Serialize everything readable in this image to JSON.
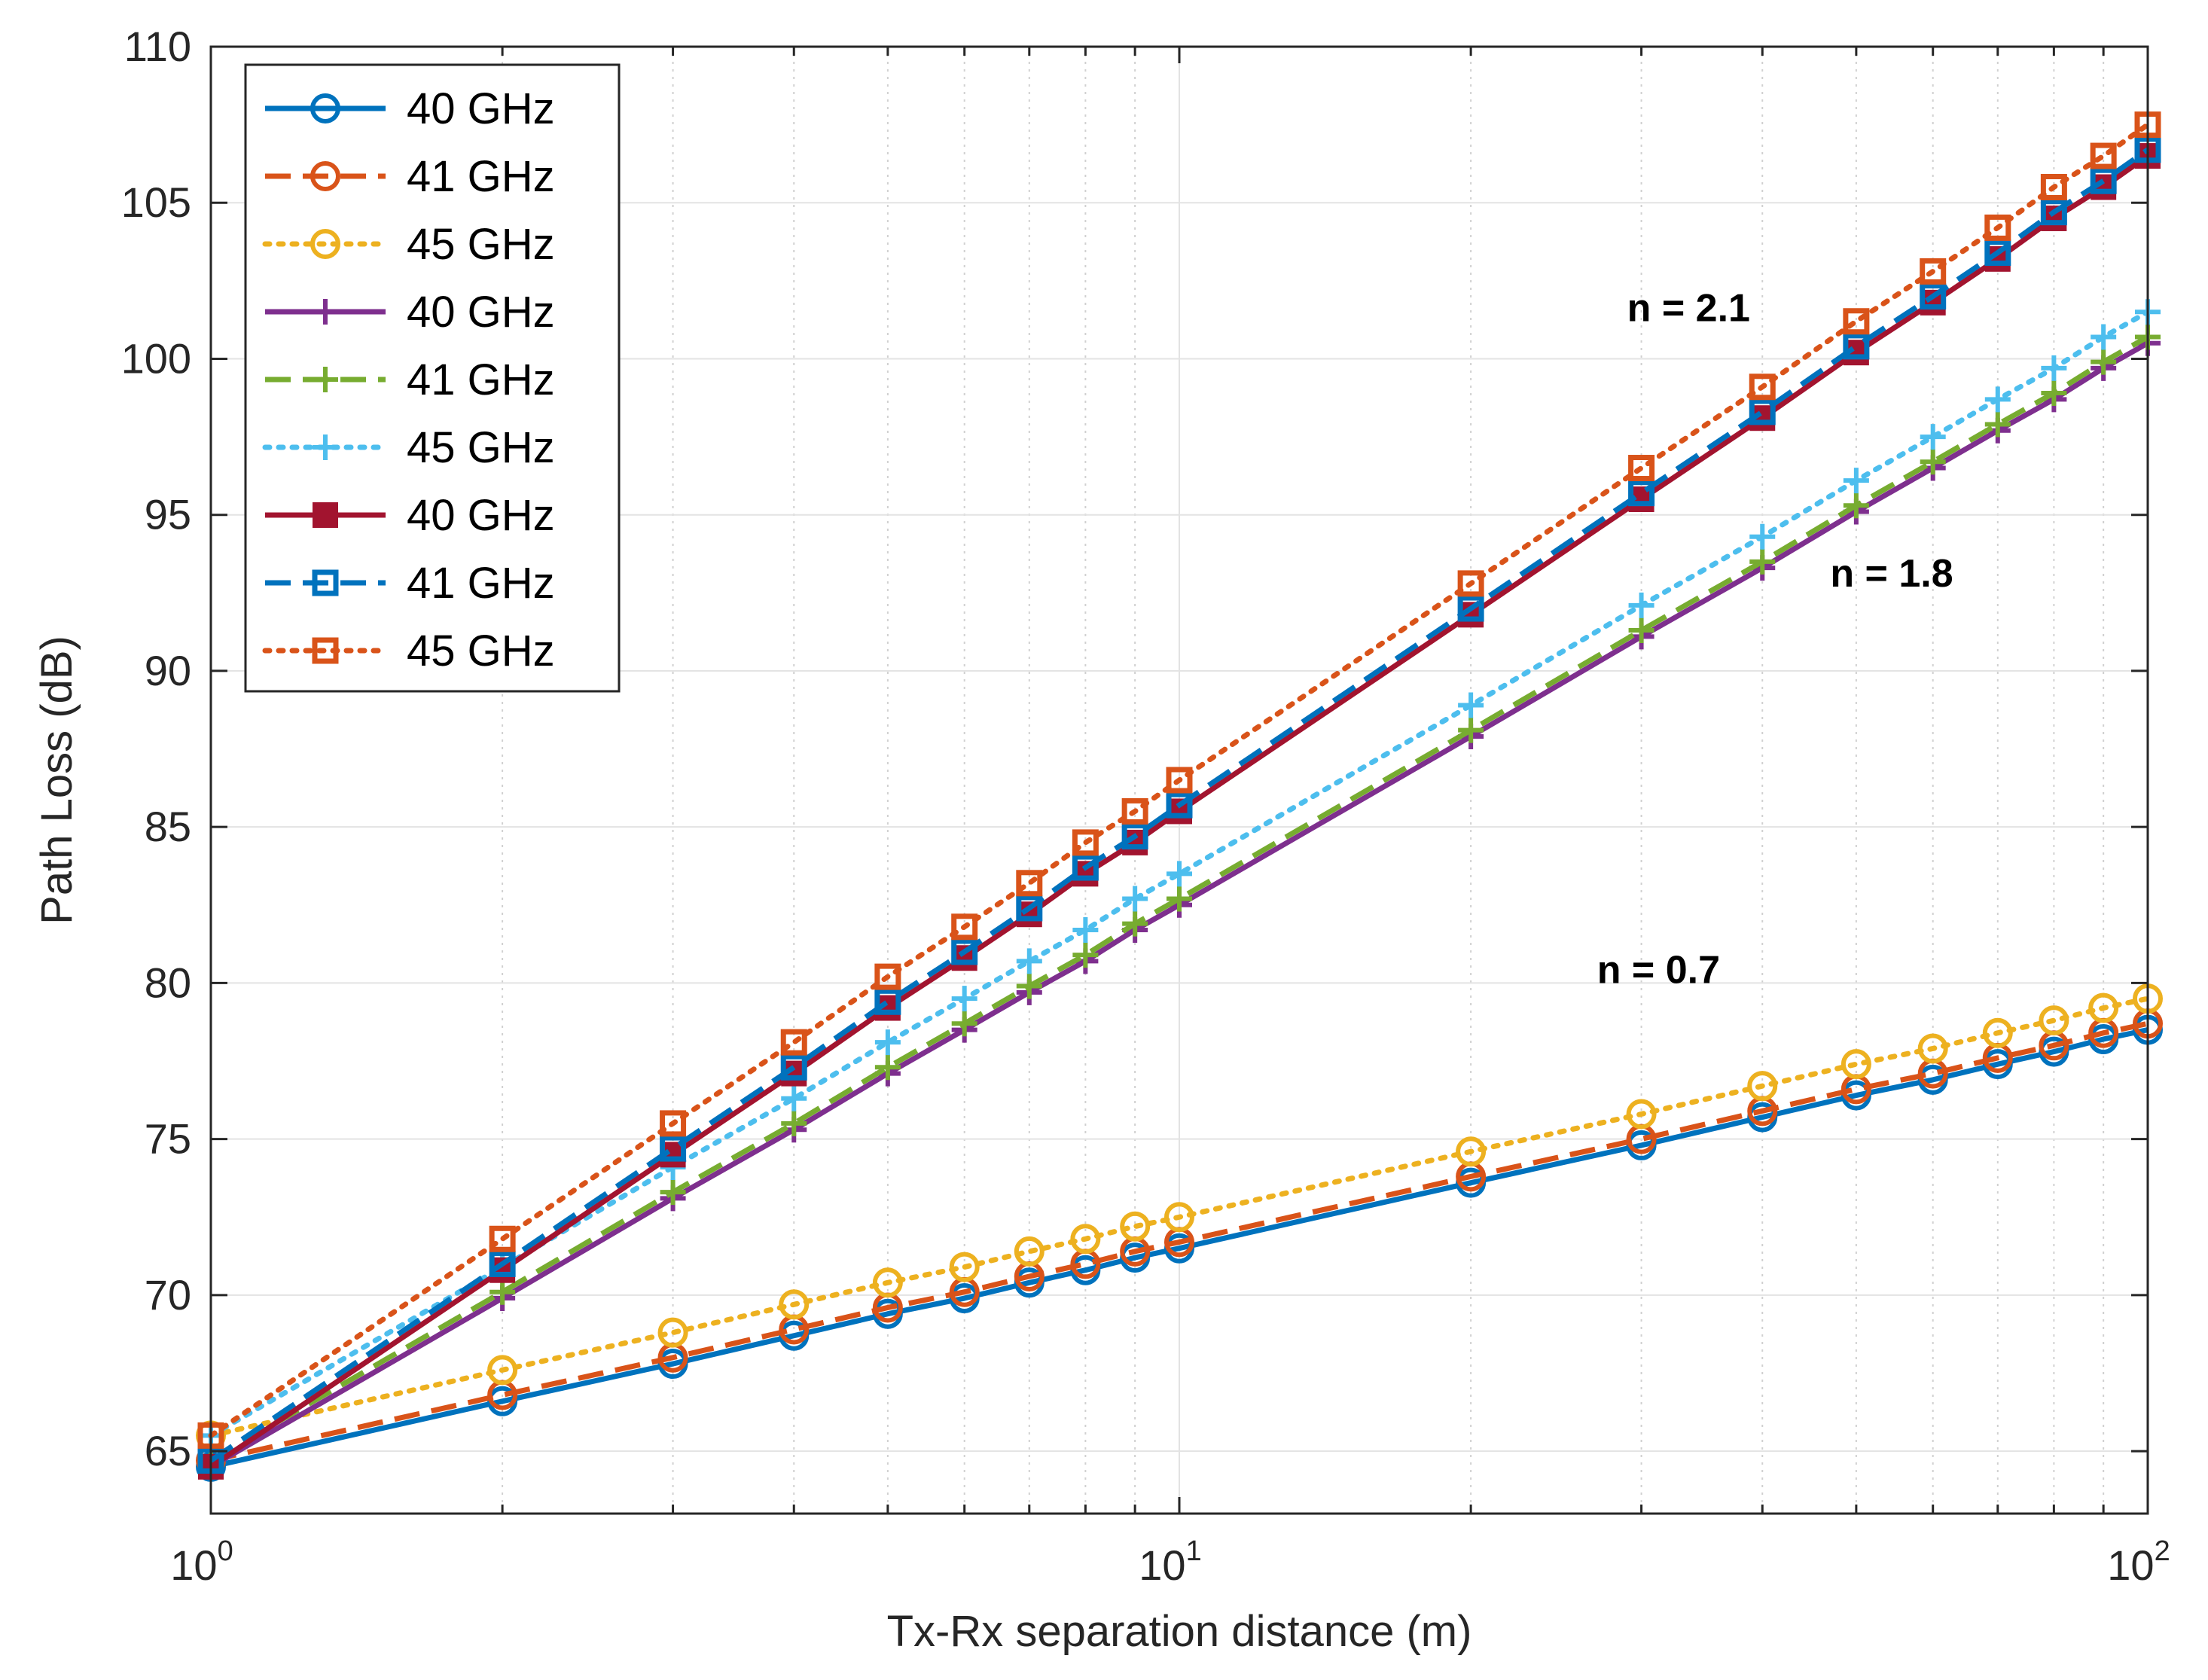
{
  "chart_data": {
    "type": "line",
    "title": "",
    "xlabel": "Tx-Rx separation distance (m)",
    "ylabel": "Path Loss (dB)",
    "xscale": "log",
    "xlim": [
      1,
      100
    ],
    "ylim": [
      63,
      110
    ],
    "grid": true,
    "legend_position": "top-left",
    "x": [
      1,
      2,
      3,
      4,
      5,
      6,
      7,
      8,
      9,
      10,
      20,
      30,
      40,
      50,
      60,
      70,
      80,
      90,
      100
    ],
    "yticks": [
      {
        "value": 65,
        "label": "65"
      },
      {
        "value": 70,
        "label": "70"
      },
      {
        "value": 75,
        "label": "75"
      },
      {
        "value": 80,
        "label": "80"
      },
      {
        "value": 85,
        "label": "85"
      },
      {
        "value": 90,
        "label": "90"
      },
      {
        "value": 95,
        "label": "95"
      },
      {
        "value": 100,
        "label": "100"
      },
      {
        "value": 105,
        "label": "105"
      },
      {
        "value": 110,
        "label": "110"
      }
    ],
    "xticks": [
      {
        "value": 1,
        "base": "10",
        "exp": "0"
      },
      {
        "value": 10,
        "base": "10",
        "exp": "1"
      },
      {
        "value": 100,
        "base": "10",
        "exp": "2"
      }
    ],
    "series": [
      {
        "name": "40 GHz",
        "color": "#0072BD",
        "dash": "solid",
        "marker": "circle",
        "values": [
          64.5,
          66.6,
          67.8,
          68.7,
          69.4,
          69.9,
          70.4,
          70.8,
          71.2,
          71.5,
          73.6,
          74.8,
          75.7,
          76.4,
          76.9,
          77.4,
          77.8,
          78.2,
          78.5
        ]
      },
      {
        "name": "41 GHz",
        "color": "#D95319",
        "dash": "dashed",
        "marker": "circle",
        "values": [
          64.7,
          66.8,
          68.0,
          68.9,
          69.6,
          70.1,
          70.6,
          71.0,
          71.4,
          71.7,
          73.8,
          75.0,
          75.9,
          76.6,
          77.1,
          77.6,
          78.0,
          78.4,
          78.7
        ]
      },
      {
        "name": "45 GHz",
        "color": "#EDB120",
        "dash": "dotted",
        "marker": "circle",
        "values": [
          65.5,
          67.6,
          68.8,
          69.7,
          70.4,
          70.9,
          71.4,
          71.8,
          72.2,
          72.5,
          74.6,
          75.8,
          76.7,
          77.4,
          77.9,
          78.4,
          78.8,
          79.2,
          79.5
        ]
      },
      {
        "name": "40 GHz",
        "color": "#7E2F8E",
        "dash": "solid",
        "marker": "plus",
        "values": [
          64.5,
          69.9,
          73.1,
          75.3,
          77.1,
          78.5,
          79.7,
          80.7,
          81.7,
          82.5,
          87.9,
          91.1,
          93.3,
          95.1,
          96.5,
          97.7,
          98.7,
          99.7,
          100.5
        ]
      },
      {
        "name": "41 GHz",
        "color": "#77AC30",
        "dash": "dashed",
        "marker": "plus",
        "values": [
          64.7,
          70.1,
          73.3,
          75.5,
          77.3,
          78.7,
          79.9,
          80.9,
          81.9,
          82.7,
          88.1,
          91.3,
          93.5,
          95.3,
          96.7,
          97.9,
          98.9,
          99.9,
          100.7
        ]
      },
      {
        "name": "45 GHz",
        "color": "#4DBEEE",
        "dash": "dotted",
        "marker": "plus",
        "values": [
          65.5,
          70.9,
          74.1,
          76.3,
          78.1,
          79.5,
          80.7,
          81.7,
          82.7,
          83.5,
          88.9,
          92.1,
          94.3,
          96.1,
          97.5,
          98.7,
          99.7,
          100.7,
          101.5
        ]
      },
      {
        "name": "40 GHz",
        "color": "#A2142F",
        "dash": "solid",
        "marker": "square-filled",
        "values": [
          64.5,
          70.8,
          74.5,
          77.1,
          79.2,
          80.8,
          82.2,
          83.5,
          84.5,
          85.5,
          91.8,
          95.5,
          98.1,
          100.2,
          101.8,
          103.2,
          104.5,
          105.5,
          106.5
        ]
      },
      {
        "name": "41 GHz",
        "color": "#0072BD",
        "dash": "dashed",
        "marker": "square",
        "values": [
          64.7,
          71.0,
          74.7,
          77.3,
          79.4,
          81.0,
          82.4,
          83.7,
          84.7,
          85.7,
          92.0,
          95.7,
          98.3,
          100.4,
          102.0,
          103.4,
          104.7,
          105.7,
          106.7
        ]
      },
      {
        "name": "45 GHz",
        "color": "#D95319",
        "dash": "dotted",
        "marker": "square",
        "values": [
          65.5,
          71.8,
          75.5,
          78.1,
          80.2,
          81.8,
          83.2,
          84.5,
          85.5,
          86.5,
          92.8,
          96.5,
          99.1,
          101.2,
          102.8,
          104.2,
          105.5,
          106.5,
          107.5
        ]
      }
    ],
    "annotations": [
      {
        "text": "n = 2.1",
        "x": 29,
        "y": 101.2
      },
      {
        "text": "n = 1.8",
        "x": 47,
        "y": 92.7
      },
      {
        "text": "n = 0.7",
        "x": 27,
        "y": 80.0
      }
    ]
  }
}
